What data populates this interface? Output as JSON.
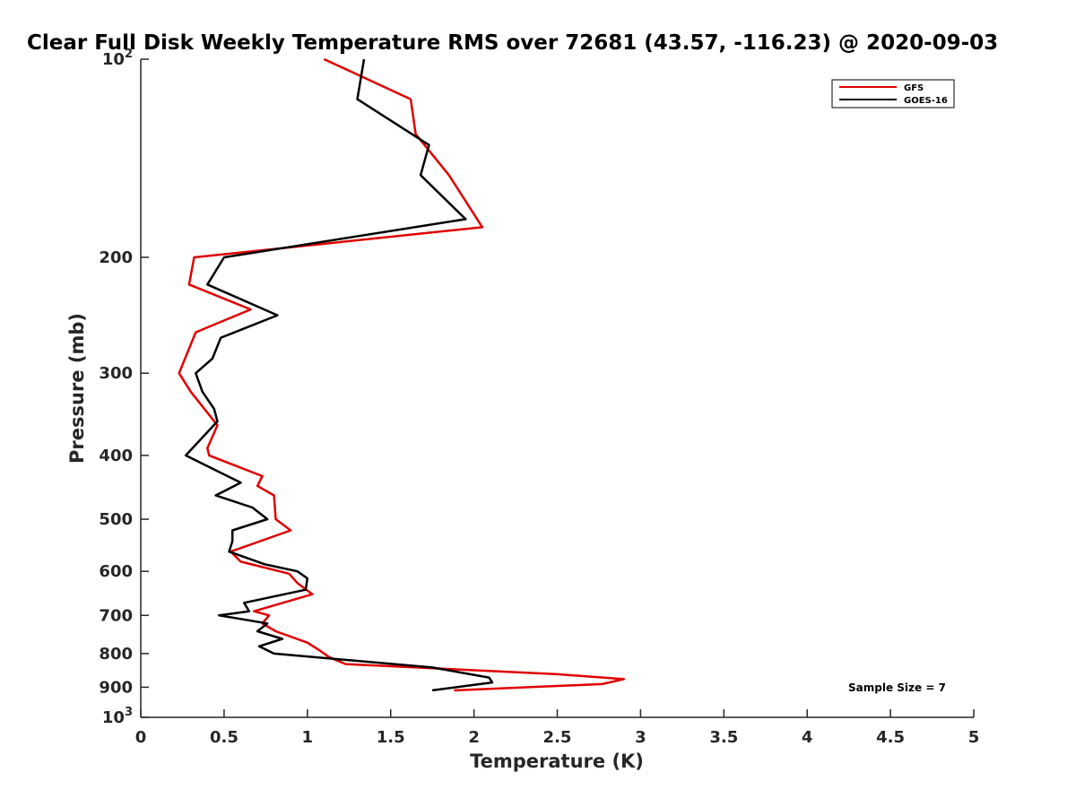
{
  "chart_data": {
    "type": "line",
    "title": "Clear Full Disk Weekly Temperature RMS over 72681 (43.57, -116.23) @ 2020-09-03",
    "xlabel": "Temperature (K)",
    "ylabel": "Pressure (mb)",
    "xlim": [
      0,
      5
    ],
    "ylim": [
      100,
      1000
    ],
    "y_scale": "log",
    "y_reversed": true,
    "x_ticks": [
      "0",
      "0.5",
      "1",
      "1.5",
      "2",
      "2.5",
      "3",
      "3.5",
      "4",
      "4.5",
      "5"
    ],
    "y_ticks": [
      {
        "value": 100,
        "base": "10",
        "exp": "2"
      },
      {
        "value": 200,
        "label": "200"
      },
      {
        "value": 300,
        "label": "300"
      },
      {
        "value": 400,
        "label": "400"
      },
      {
        "value": 500,
        "label": "500"
      },
      {
        "value": 600,
        "label": "600"
      },
      {
        "value": 700,
        "label": "700"
      },
      {
        "value": 800,
        "label": "800"
      },
      {
        "value": 900,
        "label": "900"
      },
      {
        "value": 1000,
        "base": "10",
        "exp": "3"
      }
    ],
    "grid": false,
    "legend": "top-right",
    "annotation": "Sample Size = 7",
    "series": [
      {
        "name": "GFS",
        "color": "#e00000",
        "points": [
          [
            1.1,
            100
          ],
          [
            1.62,
            115
          ],
          [
            1.65,
            130
          ],
          [
            1.85,
            150
          ],
          [
            2.05,
            180
          ],
          [
            0.32,
            200
          ],
          [
            0.29,
            220
          ],
          [
            0.66,
            240
          ],
          [
            0.33,
            260
          ],
          [
            0.23,
            300
          ],
          [
            0.3,
            320
          ],
          [
            0.46,
            360
          ],
          [
            0.4,
            390
          ],
          [
            0.41,
            400
          ],
          [
            0.73,
            430
          ],
          [
            0.7,
            445
          ],
          [
            0.8,
            460
          ],
          [
            0.81,
            500
          ],
          [
            0.9,
            520
          ],
          [
            0.54,
            560
          ],
          [
            0.6,
            580
          ],
          [
            0.89,
            605
          ],
          [
            0.94,
            625
          ],
          [
            1.03,
            650
          ],
          [
            0.68,
            690
          ],
          [
            0.77,
            700
          ],
          [
            0.73,
            720
          ],
          [
            0.81,
            740
          ],
          [
            1.0,
            770
          ],
          [
            1.07,
            790
          ],
          [
            1.13,
            810
          ],
          [
            1.23,
            830
          ],
          [
            2.5,
            860
          ],
          [
            2.9,
            875
          ],
          [
            2.77,
            890
          ],
          [
            1.88,
            910
          ]
        ]
      },
      {
        "name": "GOES-16",
        "color": "#000000",
        "points": [
          [
            1.34,
            100
          ],
          [
            1.3,
            115
          ],
          [
            1.73,
            135
          ],
          [
            1.68,
            150
          ],
          [
            1.95,
            175
          ],
          [
            0.5,
            200
          ],
          [
            0.4,
            220
          ],
          [
            0.82,
            245
          ],
          [
            0.48,
            265
          ],
          [
            0.43,
            285
          ],
          [
            0.33,
            300
          ],
          [
            0.37,
            320
          ],
          [
            0.44,
            340
          ],
          [
            0.46,
            355
          ],
          [
            0.27,
            400
          ],
          [
            0.6,
            440
          ],
          [
            0.45,
            460
          ],
          [
            0.67,
            480
          ],
          [
            0.76,
            500
          ],
          [
            0.55,
            520
          ],
          [
            0.55,
            540
          ],
          [
            0.53,
            560
          ],
          [
            0.74,
            585
          ],
          [
            0.94,
            600
          ],
          [
            1.0,
            615
          ],
          [
            0.99,
            640
          ],
          [
            0.62,
            670
          ],
          [
            0.65,
            690
          ],
          [
            0.47,
            700
          ],
          [
            0.76,
            720
          ],
          [
            0.7,
            740
          ],
          [
            0.85,
            760
          ],
          [
            0.71,
            780
          ],
          [
            0.8,
            800
          ],
          [
            1.75,
            840
          ],
          [
            2.09,
            870
          ],
          [
            2.11,
            885
          ],
          [
            1.75,
            910
          ]
        ]
      }
    ]
  }
}
